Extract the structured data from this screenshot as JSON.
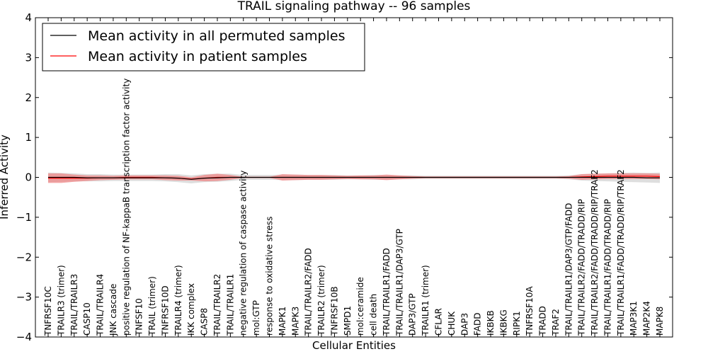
{
  "chart_data": {
    "type": "line",
    "title": "TRAIL signaling pathway -- 96 samples",
    "xlabel": "Cellular Entities",
    "ylabel": "Inferred Activity",
    "ylim": [
      -4,
      4
    ],
    "yticks": [
      4,
      3,
      2,
      1,
      0,
      -1,
      -2,
      -3,
      -4
    ],
    "ytick_labels": [
      "4",
      "3",
      "2",
      "1",
      "0",
      "−1",
      "−2",
      "−3",
      "−4"
    ],
    "legend_position": "top-left",
    "categories": [
      "TNFRSF10C",
      "TRAILR3 (trimer)",
      "TRAIL/TRAILR3",
      "CASP10",
      "TRAIL/TRAILR4",
      "JNK cascade",
      "positive regulation of NF-kappaB transcription factor activity",
      "TNFSF10",
      "TRAIL (trimer)",
      "TNFRSF10D",
      "TRAILR4 (trimer)",
      "IKK complex",
      "CASP8",
      "TRAIL/TRAILR2",
      "TRAIL/TRAILR1",
      "negative regulation of caspase activity",
      "mol:GTP",
      "response to oxidative stress",
      "MAPK1",
      "MAPK3",
      "TRAIL/TRAILR2/FADD",
      "TRAILR2 (trimer)",
      "TNFRSF10B",
      "SMPD1",
      "mol:ceramide",
      "cell death",
      "TRAIL/TRAILR1/FADD",
      "TRAIL/TRAILR1/DAP3/GTP",
      "DAP3/GTP",
      "TRAILR1 (trimer)",
      "CFLAR",
      "CHUK",
      "DAP3",
      "FADD",
      "IKBKB",
      "IKBKG",
      "RIPK1",
      "TNFRSF10A",
      "TRADD",
      "TRAF2",
      "TRAIL/TRAILR1/DAP3/GTP/FADD",
      "TRAIL/TRAILR2/FADD/TRADD/RIP",
      "TRAIL/TRAILR2/FADD/TRADD/RIP/TRAF2",
      "TRAIL/TRAILR1/FADD/TRADD/RIP",
      "TRAIL/TRAILR1/FADD/TRADD/RIP/TRAF2",
      "MAP3K1",
      "MAP2K4",
      "MAPK8"
    ],
    "series": [
      {
        "name": "Mean activity in all permuted samples",
        "color": "#000000",
        "band_color": "#c8c8c8",
        "values": [
          0,
          0,
          0,
          -0.01,
          -0.01,
          -0.01,
          -0.01,
          -0.01,
          -0.01,
          -0.01,
          -0.02,
          -0.05,
          -0.02,
          -0.01,
          0,
          0,
          0,
          0,
          0,
          0,
          0,
          0,
          0,
          0,
          0,
          0,
          0,
          0,
          0,
          0,
          0,
          0,
          0,
          0,
          0,
          0,
          0,
          0,
          0,
          0,
          0,
          0,
          0,
          0,
          0,
          0,
          -0.01,
          -0.01
        ],
        "band": [
          0.12,
          0.11,
          0.1,
          0.09,
          0.09,
          0.08,
          0.08,
          0.08,
          0.08,
          0.09,
          0.1,
          0.1,
          0.1,
          0.1,
          0.09,
          0.06,
          0.06,
          0.06,
          0.07,
          0.07,
          0.06,
          0.06,
          0.06,
          0.05,
          0.05,
          0.06,
          0.06,
          0.05,
          0.05,
          0.04,
          0.04,
          0.04,
          0.04,
          0.04,
          0.04,
          0.04,
          0.04,
          0.04,
          0.04,
          0.04,
          0.05,
          0.08,
          0.09,
          0.1,
          0.11,
          0.12,
          0.12,
          0.13
        ]
      },
      {
        "name": "Mean activity in patient samples",
        "color": "#ff0000",
        "band_color": "#f08080",
        "values": [
          -0.02,
          -0.02,
          -0.02,
          -0.02,
          -0.01,
          -0.01,
          0,
          0,
          0,
          -0.01,
          -0.02,
          -0.04,
          -0.02,
          0,
          0,
          0,
          0,
          0,
          0,
          0,
          0,
          0,
          0,
          0,
          0,
          0,
          0,
          0,
          0,
          0,
          0,
          0,
          0,
          0,
          0,
          0,
          0,
          0,
          0,
          0,
          0,
          0.01,
          0.02,
          0.03,
          0.03,
          0.03,
          0.03,
          0.02
        ],
        "band": [
          0.12,
          0.12,
          0.09,
          0.07,
          0.06,
          0.05,
          0.05,
          0.05,
          0.05,
          0.06,
          0.06,
          0.04,
          0.08,
          0.09,
          0.06,
          0.01,
          0.01,
          0.01,
          0.08,
          0.07,
          0.06,
          0.06,
          0.05,
          0.04,
          0.05,
          0.05,
          0.07,
          0.05,
          0.03,
          0.02,
          0.02,
          0.02,
          0.02,
          0.02,
          0.02,
          0.02,
          0.02,
          0.02,
          0.02,
          0.02,
          0.03,
          0.07,
          0.07,
          0.07,
          0.07,
          0.07,
          0.07,
          0.07
        ]
      }
    ]
  }
}
